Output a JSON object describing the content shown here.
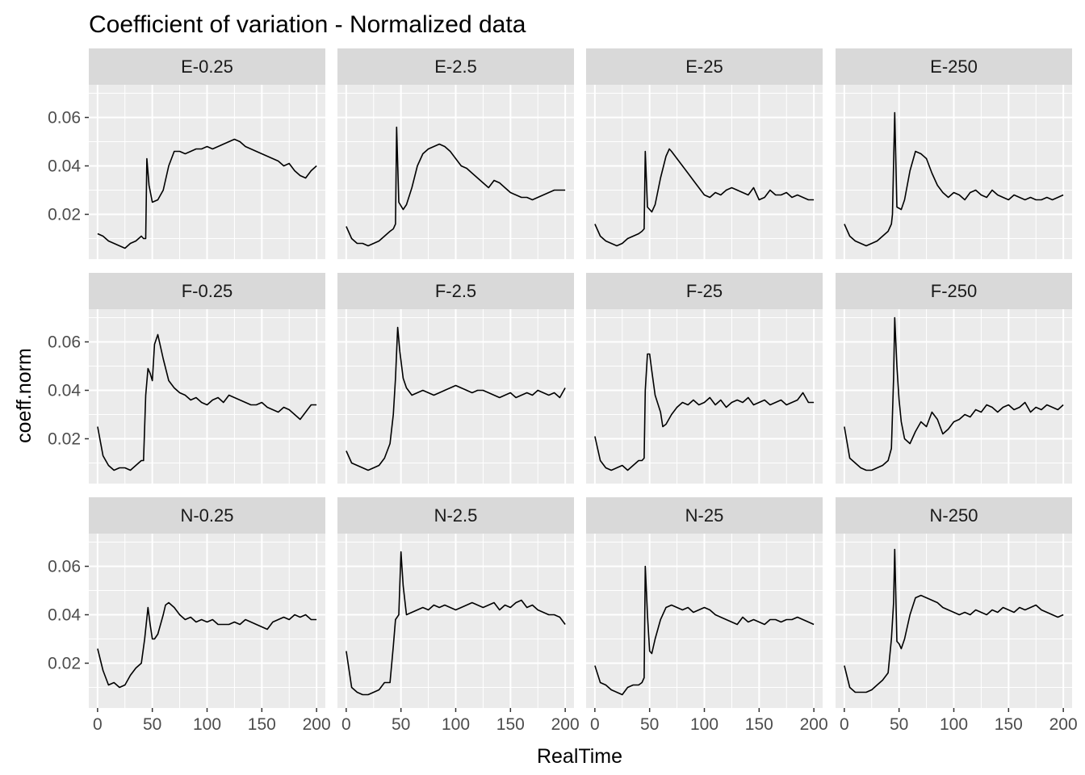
{
  "chart_data": {
    "type": "line",
    "title": "Coefficient of variation - Normalized data",
    "xlabel": "RealTime",
    "ylabel": "coeff.norm",
    "xlim": [
      -8,
      208
    ],
    "ylim": [
      0.0015,
      0.0735
    ],
    "x_ticks": [
      0,
      50,
      100,
      150,
      200
    ],
    "x_tick_labels": [
      "0",
      "50",
      "100",
      "150",
      "200"
    ],
    "y_ticks": [
      0.02,
      0.04,
      0.06
    ],
    "y_tick_labels": [
      "0.02",
      "0.04",
      "0.06"
    ],
    "grid": true,
    "facet_layout": {
      "rows": 3,
      "cols": 4
    },
    "line_color": "#000000",
    "panel_background": "#ebebeb",
    "strip_background": "#d9d9d9",
    "grid_color": "#ffffff",
    "panels": [
      {
        "label": "E-0.25",
        "x": [
          0,
          5,
          10,
          15,
          20,
          25,
          30,
          35,
          40,
          42,
          44,
          45,
          47,
          50,
          55,
          60,
          65,
          70,
          75,
          80,
          85,
          90,
          95,
          100,
          105,
          110,
          115,
          120,
          125,
          130,
          135,
          140,
          145,
          150,
          155,
          160,
          165,
          170,
          175,
          180,
          185,
          190,
          195,
          200
        ],
        "y": [
          0.012,
          0.011,
          0.009,
          0.008,
          0.007,
          0.006,
          0.008,
          0.009,
          0.011,
          0.01,
          0.01,
          0.043,
          0.032,
          0.025,
          0.026,
          0.03,
          0.04,
          0.046,
          0.046,
          0.045,
          0.046,
          0.047,
          0.047,
          0.048,
          0.047,
          0.048,
          0.049,
          0.05,
          0.051,
          0.05,
          0.048,
          0.047,
          0.046,
          0.045,
          0.044,
          0.043,
          0.042,
          0.04,
          0.041,
          0.038,
          0.036,
          0.035,
          0.038,
          0.04
        ]
      },
      {
        "label": "E-2.5",
        "x": [
          0,
          5,
          10,
          15,
          20,
          25,
          30,
          35,
          40,
          43,
          45,
          46,
          48,
          52,
          55,
          60,
          65,
          70,
          75,
          80,
          85,
          90,
          95,
          100,
          105,
          110,
          115,
          120,
          125,
          130,
          135,
          140,
          145,
          150,
          155,
          160,
          165,
          170,
          175,
          180,
          185,
          190,
          195,
          200
        ],
        "y": [
          0.015,
          0.01,
          0.008,
          0.008,
          0.007,
          0.008,
          0.009,
          0.011,
          0.013,
          0.014,
          0.016,
          0.056,
          0.025,
          0.022,
          0.024,
          0.031,
          0.04,
          0.045,
          0.047,
          0.048,
          0.049,
          0.048,
          0.046,
          0.043,
          0.04,
          0.039,
          0.037,
          0.035,
          0.033,
          0.031,
          0.034,
          0.033,
          0.031,
          0.029,
          0.028,
          0.027,
          0.027,
          0.026,
          0.027,
          0.028,
          0.029,
          0.03,
          0.03,
          0.03
        ]
      },
      {
        "label": "E-25",
        "x": [
          0,
          5,
          10,
          15,
          20,
          25,
          30,
          35,
          40,
          43,
          45,
          46,
          48,
          52,
          55,
          60,
          65,
          68,
          70,
          75,
          80,
          85,
          90,
          95,
          100,
          105,
          110,
          115,
          120,
          125,
          130,
          135,
          140,
          145,
          150,
          155,
          160,
          165,
          170,
          175,
          180,
          185,
          190,
          195,
          200
        ],
        "y": [
          0.016,
          0.011,
          0.009,
          0.008,
          0.007,
          0.008,
          0.01,
          0.011,
          0.012,
          0.013,
          0.014,
          0.046,
          0.023,
          0.021,
          0.024,
          0.035,
          0.044,
          0.047,
          0.046,
          0.043,
          0.04,
          0.037,
          0.034,
          0.031,
          0.028,
          0.027,
          0.029,
          0.028,
          0.03,
          0.031,
          0.03,
          0.029,
          0.028,
          0.031,
          0.026,
          0.027,
          0.03,
          0.028,
          0.028,
          0.029,
          0.027,
          0.028,
          0.027,
          0.026,
          0.026
        ]
      },
      {
        "label": "E-250",
        "x": [
          0,
          5,
          10,
          15,
          20,
          25,
          30,
          35,
          40,
          43,
          44,
          46,
          48,
          52,
          55,
          60,
          65,
          70,
          75,
          80,
          85,
          90,
          95,
          100,
          105,
          110,
          115,
          120,
          125,
          130,
          135,
          140,
          145,
          150,
          155,
          160,
          165,
          170,
          175,
          180,
          185,
          190,
          195,
          200
        ],
        "y": [
          0.016,
          0.011,
          0.009,
          0.008,
          0.007,
          0.008,
          0.009,
          0.011,
          0.013,
          0.016,
          0.02,
          0.062,
          0.023,
          0.022,
          0.026,
          0.038,
          0.046,
          0.045,
          0.043,
          0.037,
          0.032,
          0.029,
          0.027,
          0.029,
          0.028,
          0.026,
          0.029,
          0.03,
          0.028,
          0.027,
          0.03,
          0.028,
          0.027,
          0.026,
          0.028,
          0.027,
          0.026,
          0.027,
          0.026,
          0.026,
          0.027,
          0.026,
          0.027,
          0.028
        ]
      },
      {
        "label": "F-0.25",
        "x": [
          0,
          5,
          10,
          15,
          20,
          25,
          30,
          35,
          40,
          42,
          44,
          46,
          48,
          50,
          52,
          55,
          60,
          65,
          70,
          75,
          80,
          85,
          90,
          95,
          100,
          105,
          110,
          115,
          120,
          125,
          130,
          135,
          140,
          145,
          150,
          155,
          160,
          165,
          170,
          175,
          180,
          185,
          190,
          195,
          200
        ],
        "y": [
          0.025,
          0.013,
          0.009,
          0.007,
          0.008,
          0.008,
          0.007,
          0.009,
          0.011,
          0.011,
          0.038,
          0.049,
          0.047,
          0.044,
          0.059,
          0.063,
          0.053,
          0.044,
          0.041,
          0.039,
          0.038,
          0.036,
          0.037,
          0.035,
          0.034,
          0.036,
          0.037,
          0.035,
          0.038,
          0.037,
          0.036,
          0.035,
          0.034,
          0.034,
          0.035,
          0.033,
          0.032,
          0.031,
          0.033,
          0.032,
          0.03,
          0.028,
          0.031,
          0.034,
          0.034
        ]
      },
      {
        "label": "F-2.5",
        "x": [
          0,
          5,
          10,
          15,
          20,
          25,
          30,
          35,
          40,
          43,
          45,
          47,
          49,
          52,
          55,
          60,
          65,
          70,
          75,
          80,
          85,
          90,
          95,
          100,
          105,
          110,
          115,
          120,
          125,
          130,
          135,
          140,
          145,
          150,
          155,
          160,
          165,
          170,
          175,
          180,
          185,
          190,
          195,
          200
        ],
        "y": [
          0.015,
          0.01,
          0.009,
          0.008,
          0.007,
          0.008,
          0.009,
          0.012,
          0.018,
          0.03,
          0.045,
          0.066,
          0.056,
          0.045,
          0.041,
          0.038,
          0.039,
          0.04,
          0.039,
          0.038,
          0.039,
          0.04,
          0.041,
          0.042,
          0.041,
          0.04,
          0.039,
          0.04,
          0.04,
          0.039,
          0.038,
          0.037,
          0.038,
          0.039,
          0.037,
          0.038,
          0.039,
          0.038,
          0.04,
          0.039,
          0.038,
          0.039,
          0.037,
          0.041
        ]
      },
      {
        "label": "F-25",
        "x": [
          0,
          5,
          10,
          15,
          20,
          25,
          30,
          35,
          40,
          43,
          45,
          46,
          48,
          50,
          52,
          55,
          60,
          62,
          65,
          70,
          75,
          80,
          85,
          90,
          95,
          100,
          105,
          110,
          115,
          120,
          125,
          130,
          135,
          140,
          145,
          150,
          155,
          160,
          165,
          170,
          175,
          180,
          185,
          190,
          195,
          200
        ],
        "y": [
          0.021,
          0.011,
          0.008,
          0.007,
          0.008,
          0.009,
          0.007,
          0.009,
          0.011,
          0.011,
          0.012,
          0.04,
          0.055,
          0.055,
          0.048,
          0.038,
          0.031,
          0.025,
          0.026,
          0.03,
          0.033,
          0.035,
          0.034,
          0.036,
          0.034,
          0.035,
          0.037,
          0.034,
          0.036,
          0.033,
          0.035,
          0.036,
          0.035,
          0.037,
          0.034,
          0.035,
          0.036,
          0.034,
          0.035,
          0.036,
          0.034,
          0.035,
          0.036,
          0.039,
          0.035,
          0.035
        ]
      },
      {
        "label": "F-250",
        "x": [
          0,
          5,
          10,
          15,
          20,
          25,
          30,
          35,
          40,
          43,
          45,
          46,
          48,
          50,
          52,
          55,
          60,
          65,
          70,
          75,
          80,
          85,
          90,
          95,
          100,
          105,
          110,
          115,
          120,
          125,
          130,
          135,
          140,
          145,
          150,
          155,
          160,
          165,
          170,
          175,
          180,
          185,
          190,
          195,
          200
        ],
        "y": [
          0.025,
          0.012,
          0.01,
          0.008,
          0.007,
          0.007,
          0.008,
          0.009,
          0.011,
          0.016,
          0.045,
          0.07,
          0.05,
          0.036,
          0.027,
          0.02,
          0.018,
          0.023,
          0.027,
          0.025,
          0.031,
          0.028,
          0.022,
          0.024,
          0.027,
          0.028,
          0.03,
          0.029,
          0.032,
          0.031,
          0.034,
          0.033,
          0.031,
          0.033,
          0.034,
          0.032,
          0.033,
          0.035,
          0.031,
          0.033,
          0.032,
          0.034,
          0.033,
          0.032,
          0.034
        ]
      },
      {
        "label": "N-0.25",
        "x": [
          0,
          5,
          10,
          15,
          20,
          25,
          30,
          35,
          40,
          43,
          46,
          48,
          50,
          52,
          55,
          60,
          62,
          65,
          70,
          75,
          80,
          85,
          90,
          95,
          100,
          105,
          110,
          115,
          120,
          125,
          130,
          135,
          140,
          145,
          150,
          155,
          160,
          165,
          170,
          175,
          180,
          185,
          190,
          195,
          200
        ],
        "y": [
          0.026,
          0.017,
          0.011,
          0.012,
          0.01,
          0.011,
          0.015,
          0.018,
          0.02,
          0.03,
          0.043,
          0.036,
          0.03,
          0.03,
          0.032,
          0.04,
          0.044,
          0.045,
          0.043,
          0.04,
          0.038,
          0.039,
          0.037,
          0.038,
          0.037,
          0.038,
          0.036,
          0.036,
          0.036,
          0.037,
          0.036,
          0.038,
          0.037,
          0.036,
          0.035,
          0.034,
          0.037,
          0.038,
          0.039,
          0.038,
          0.04,
          0.039,
          0.04,
          0.038,
          0.038
        ]
      },
      {
        "label": "N-2.5",
        "x": [
          0,
          5,
          10,
          15,
          20,
          25,
          30,
          35,
          40,
          43,
          45,
          48,
          50,
          52,
          55,
          60,
          65,
          70,
          75,
          80,
          85,
          90,
          95,
          100,
          105,
          110,
          115,
          120,
          125,
          130,
          135,
          140,
          145,
          150,
          155,
          160,
          165,
          170,
          175,
          180,
          185,
          190,
          195,
          200
        ],
        "y": [
          0.025,
          0.01,
          0.008,
          0.007,
          0.007,
          0.008,
          0.009,
          0.012,
          0.012,
          0.027,
          0.038,
          0.04,
          0.066,
          0.052,
          0.04,
          0.041,
          0.042,
          0.043,
          0.042,
          0.044,
          0.043,
          0.044,
          0.043,
          0.042,
          0.043,
          0.044,
          0.045,
          0.044,
          0.043,
          0.044,
          0.045,
          0.042,
          0.044,
          0.043,
          0.045,
          0.046,
          0.043,
          0.044,
          0.042,
          0.041,
          0.04,
          0.04,
          0.039,
          0.036
        ]
      },
      {
        "label": "N-25",
        "x": [
          0,
          5,
          10,
          15,
          20,
          25,
          30,
          35,
          40,
          43,
          45,
          46,
          48,
          50,
          52,
          55,
          60,
          65,
          70,
          75,
          80,
          85,
          90,
          95,
          100,
          105,
          110,
          115,
          120,
          125,
          130,
          135,
          140,
          145,
          150,
          155,
          160,
          165,
          170,
          175,
          180,
          185,
          190,
          195,
          200
        ],
        "y": [
          0.019,
          0.012,
          0.011,
          0.009,
          0.008,
          0.007,
          0.01,
          0.011,
          0.011,
          0.012,
          0.014,
          0.06,
          0.04,
          0.025,
          0.024,
          0.03,
          0.038,
          0.043,
          0.044,
          0.043,
          0.042,
          0.043,
          0.041,
          0.042,
          0.043,
          0.042,
          0.04,
          0.039,
          0.038,
          0.037,
          0.036,
          0.039,
          0.037,
          0.038,
          0.037,
          0.036,
          0.038,
          0.038,
          0.037,
          0.038,
          0.038,
          0.039,
          0.038,
          0.037,
          0.036
        ]
      },
      {
        "label": "N-250",
        "x": [
          0,
          5,
          10,
          15,
          20,
          25,
          30,
          35,
          40,
          43,
          45,
          46,
          48,
          50,
          52,
          55,
          60,
          65,
          70,
          75,
          80,
          85,
          90,
          95,
          100,
          105,
          110,
          115,
          120,
          125,
          130,
          135,
          140,
          145,
          150,
          155,
          160,
          165,
          170,
          175,
          180,
          185,
          190,
          195,
          200
        ],
        "y": [
          0.019,
          0.01,
          0.008,
          0.008,
          0.008,
          0.009,
          0.011,
          0.013,
          0.016,
          0.03,
          0.045,
          0.067,
          0.029,
          0.028,
          0.026,
          0.03,
          0.04,
          0.047,
          0.048,
          0.047,
          0.046,
          0.045,
          0.043,
          0.042,
          0.041,
          0.04,
          0.041,
          0.04,
          0.042,
          0.041,
          0.04,
          0.042,
          0.041,
          0.043,
          0.042,
          0.041,
          0.043,
          0.042,
          0.043,
          0.044,
          0.042,
          0.041,
          0.04,
          0.039,
          0.04
        ]
      }
    ]
  }
}
